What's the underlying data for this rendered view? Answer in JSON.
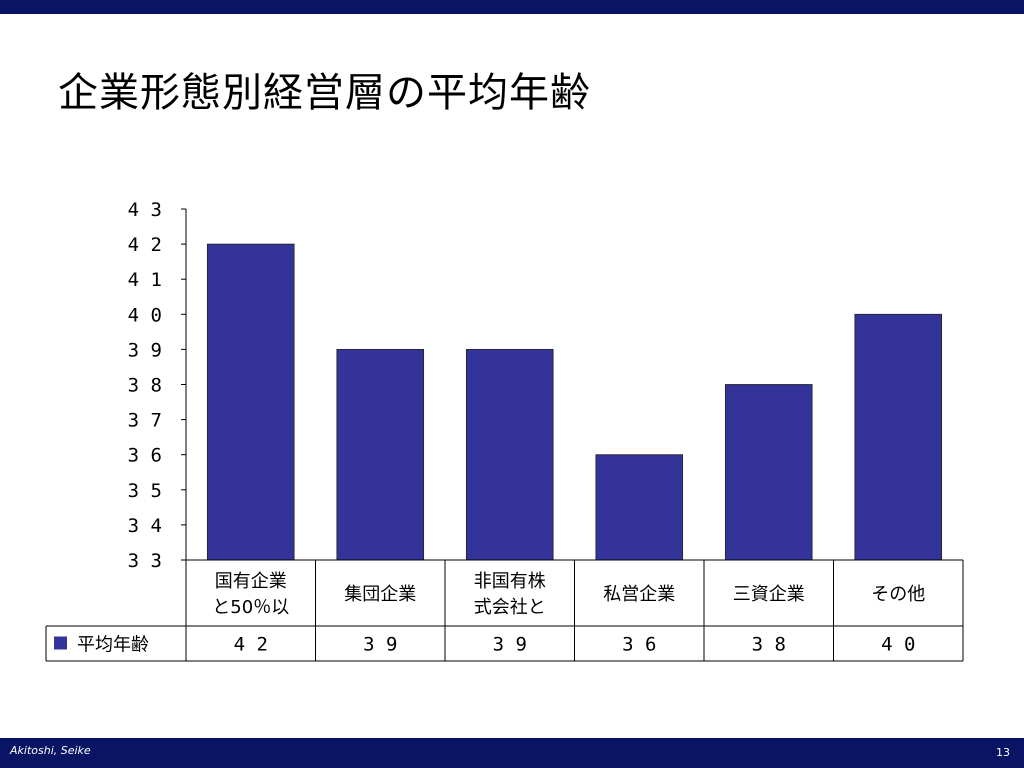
{
  "slide": {
    "title": "企業形態別経営層の平均年齢",
    "author": "Akitoshi, Seike",
    "page_number": "13"
  },
  "colors": {
    "band": "#0a1464",
    "bar": "#333399"
  },
  "chart_data": {
    "type": "bar",
    "categories": [
      [
        "国有企業",
        "と50％以"
      ],
      [
        "集団企業"
      ],
      [
        "非国有株",
        "式会社と"
      ],
      [
        "私営企業"
      ],
      [
        "三資企業"
      ],
      [
        "その他"
      ]
    ],
    "series": [
      {
        "name": "平均年齢",
        "values": [
          42,
          39,
          39,
          36,
          38,
          40
        ]
      }
    ],
    "ylim": [
      33,
      43
    ],
    "yticks": [
      33,
      34,
      35,
      36,
      37,
      38,
      39,
      40,
      41,
      42,
      43
    ],
    "grid": false,
    "legend": "data-table-left"
  }
}
